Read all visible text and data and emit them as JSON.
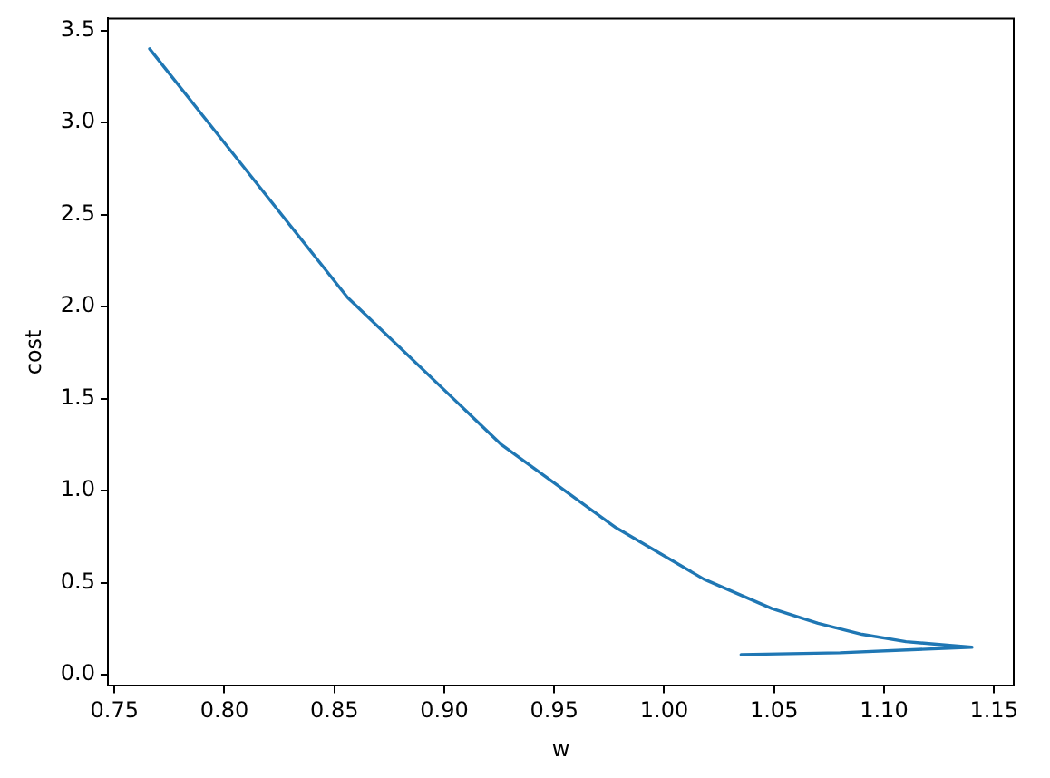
{
  "chart_data": {
    "type": "line",
    "xlabel": "w",
    "ylabel": "cost",
    "x": [
      0.766,
      0.856,
      0.926,
      0.978,
      1.018,
      1.049,
      1.07,
      1.09,
      1.11,
      1.13,
      1.14,
      1.08,
      1.035
    ],
    "series": [
      {
        "color": "#1f77b4",
        "values": [
          3.4,
          2.05,
          1.25,
          0.8,
          0.52,
          0.36,
          0.28,
          0.22,
          0.18,
          0.16,
          0.15,
          0.12,
          0.11
        ]
      }
    ],
    "xlim": [
      0.747,
      1.159
    ],
    "xticks": [
      {
        "value": 0.75,
        "label": "0.75"
      },
      {
        "value": 0.8,
        "label": "0.80"
      },
      {
        "value": 0.85,
        "label": "0.85"
      },
      {
        "value": 0.9,
        "label": "0.90"
      },
      {
        "value": 0.95,
        "label": "0.95"
      },
      {
        "value": 1.0,
        "label": "1.00"
      },
      {
        "value": 1.05,
        "label": "1.05"
      },
      {
        "value": 1.1,
        "label": "1.10"
      },
      {
        "value": 1.15,
        "label": "1.15"
      }
    ],
    "ylim": [
      -0.06,
      3.565
    ],
    "yticks": [
      {
        "value": 0,
        "label": "0.0"
      },
      {
        "value": 0.5,
        "label": "0.5"
      },
      {
        "value": 1,
        "label": "1.0"
      },
      {
        "value": 1.5,
        "label": "1.5"
      },
      {
        "value": 2,
        "label": "2.0"
      },
      {
        "value": 2.5,
        "label": "2.5"
      },
      {
        "value": 3,
        "label": "3.0"
      },
      {
        "value": 3.5,
        "label": "3.5"
      }
    ],
    "grid": false,
    "legend": false,
    "marker": "none"
  }
}
